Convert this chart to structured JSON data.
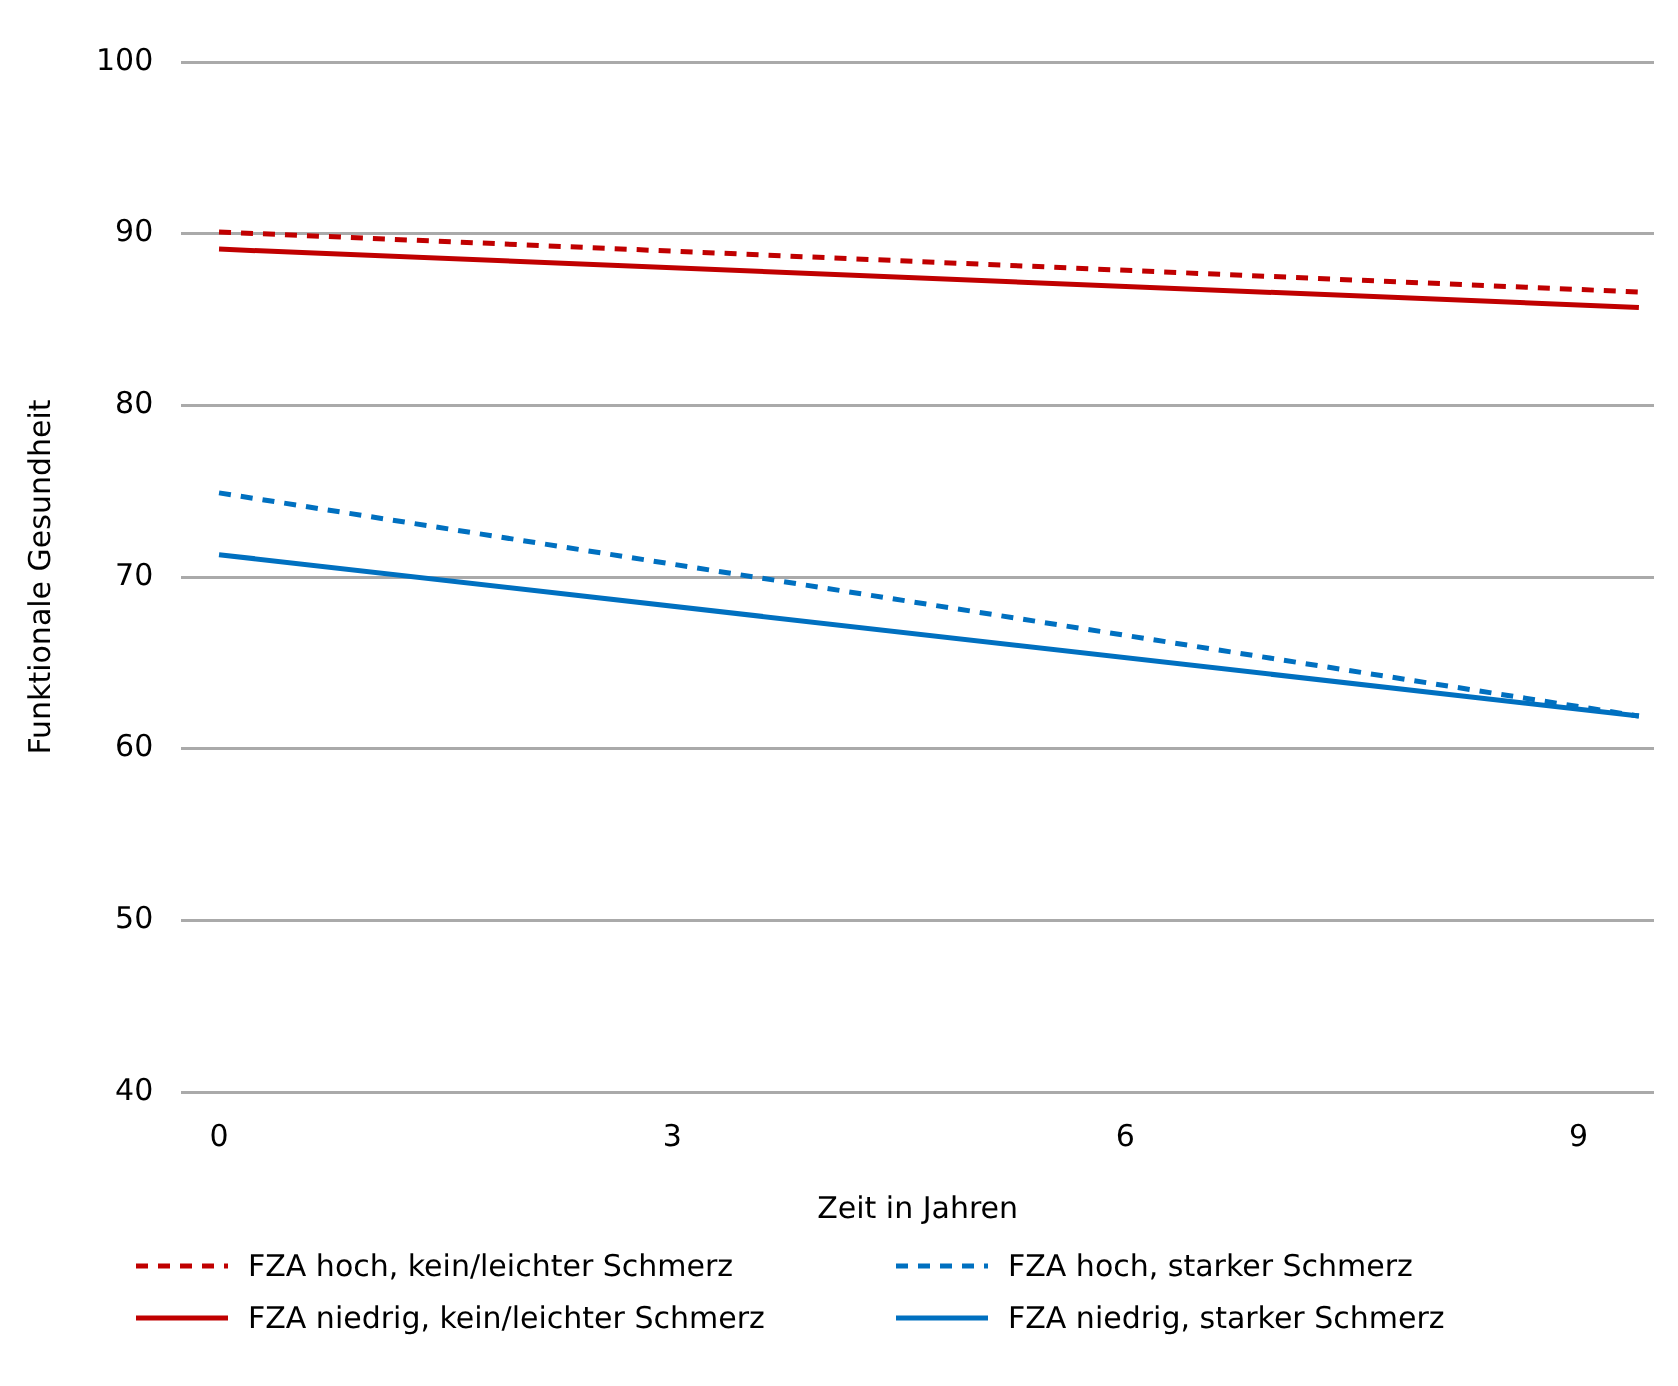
{
  "chart_data": {
    "type": "line",
    "xlabel": "Zeit in Jahren",
    "ylabel": "Funktionale Gesundheit",
    "xlim": [
      -0.25,
      9.5
    ],
    "xticks": [
      0,
      3,
      6,
      9
    ],
    "ylim": [
      40,
      100
    ],
    "yticks": [
      40,
      50,
      60,
      70,
      80,
      90,
      100
    ],
    "grid": "y",
    "legend": "bottom",
    "marker": "none",
    "x": [
      0,
      9.4
    ],
    "series": [
      {
        "name": "FZA hoch, kein/leichter Schmerz",
        "color": "#c00000",
        "line_style": "dashed",
        "values": [
          90.1,
          86.6
        ]
      },
      {
        "name": "FZA hoch, starker Schmerz",
        "color": "#0070c0",
        "line_style": "dashed",
        "values": [
          74.9,
          61.9
        ]
      },
      {
        "name": "FZA niedrig, kein/leichter Schmerz",
        "color": "#c00000",
        "line_style": "solid",
        "values": [
          89.1,
          85.7
        ]
      },
      {
        "name": "FZA niedrig, starker Schmerz",
        "color": "#0070c0",
        "line_style": "solid",
        "values": [
          71.3,
          61.9
        ]
      }
    ]
  }
}
